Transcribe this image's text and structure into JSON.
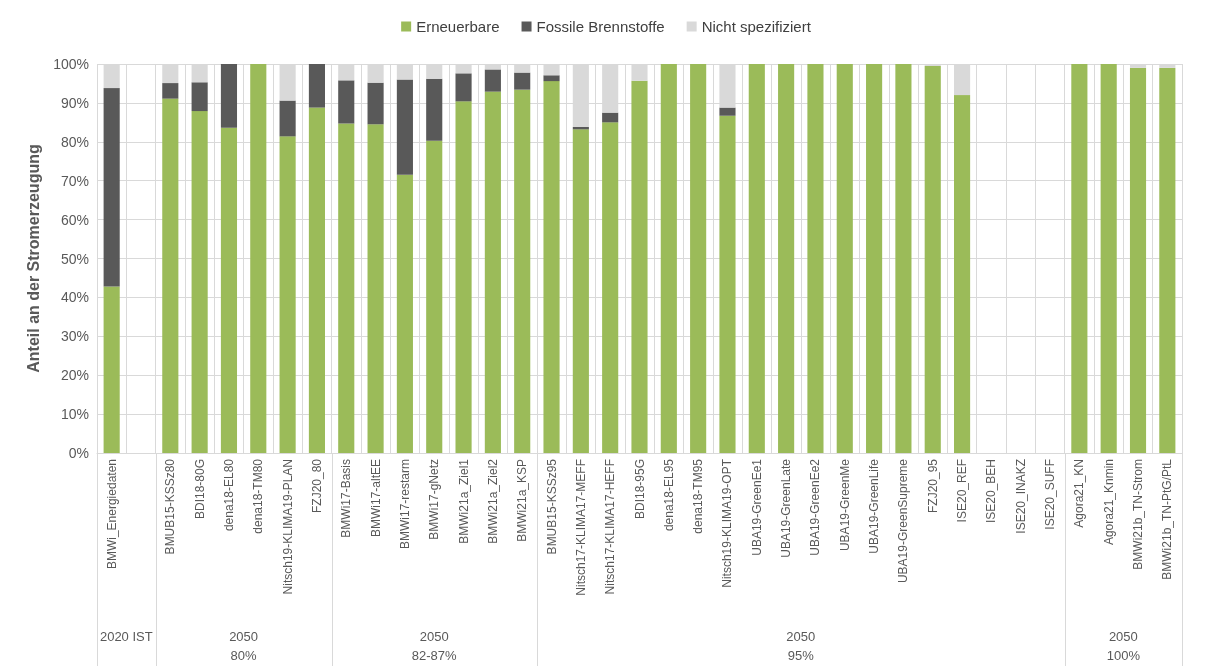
{
  "chart_data": {
    "type": "bar",
    "stacked": true,
    "ylabel": "Anteil an der Stromerzeugung",
    "categories": [
      "BMWi_Energiedaten",
      null,
      "BMUB15-KSSz80",
      "BDI18-80G",
      "dena18-EL80",
      "dena18-TM80",
      "Nitsch19-KLIMA19-PLAN",
      "FZJ20_80",
      "BMWi17-Basis",
      "BMWi17-altEE",
      "BMWi17-restarm",
      "BMWi17-gNetz",
      "BMWi21a_Ziel1",
      "BMWi21a_Ziel2",
      "BMWi21a_KSP",
      "BMUB15-KSSz95",
      "Nitsch17-KLIMA17-MEFF",
      "Nitsch17-KLIMA17-HEFF",
      "BDI18-95G",
      "dena18-EL95",
      "dena18-TM95",
      "Nitsch19-KLIMA19-OPT",
      "UBA19-GreenEe1",
      "UBA19-GreenLate",
      "UBA19-GreenEe2",
      "UBA19-GreenMe",
      "UBA19-GreenLife",
      "UBA19-GreenSupreme",
      "FZJ20_95",
      "ISE20_REF",
      "ISE20_BEH",
      "ISE20_INAKZ",
      "ISE20_SUFF",
      "Agora21_KN",
      "Agora21_Knmin",
      "BMWi21b_TN-Strom",
      "BMWi21b_TN-PtG/PtL"
    ],
    "series": [
      {
        "name": "Erneuerbare",
        "color": "#9bbb59",
        "values": [
          42.8,
          null,
          91.1,
          87.9,
          83.6,
          100,
          81.4,
          88.8,
          84.7,
          84.5,
          71.5,
          80.3,
          90.4,
          92.9,
          93.4,
          95.6,
          83.2,
          85.0,
          95.7,
          100,
          100,
          86.7,
          100,
          100,
          100,
          100,
          100,
          100,
          99.5,
          92.0,
          null,
          null,
          null,
          100,
          100,
          99.0,
          99.0
        ]
      },
      {
        "name": "Fossile Brennstoffe",
        "color": "#595959",
        "values": [
          51.0,
          null,
          4.0,
          7.4,
          16.4,
          0,
          9.2,
          11.2,
          11.1,
          10.7,
          24.5,
          15.9,
          7.2,
          5.7,
          4.4,
          1.5,
          0.6,
          2.5,
          0,
          0,
          0,
          2.1,
          0,
          0,
          0,
          0,
          0,
          0,
          0,
          0,
          null,
          null,
          null,
          0,
          0,
          0,
          0
        ]
      },
      {
        "name": "Nicht spezifiziert",
        "color": "#d9d9d9",
        "values": [
          6.2,
          null,
          4.9,
          4.7,
          0,
          0,
          9.4,
          0,
          4.2,
          4.8,
          4.0,
          3.8,
          2.4,
          1.4,
          2.2,
          2.9,
          16.2,
          12.5,
          4.3,
          0,
          0,
          11.2,
          0,
          0,
          0,
          0,
          0,
          0,
          0.5,
          8.0,
          null,
          null,
          null,
          0,
          0,
          1.0,
          1.0
        ]
      }
    ],
    "ylim": [
      0,
      100
    ],
    "yticks": [
      {
        "value": 0,
        "label": "0%"
      },
      {
        "value": 10,
        "label": "10%"
      },
      {
        "value": 20,
        "label": "20%"
      },
      {
        "value": 30,
        "label": "30%"
      },
      {
        "value": 40,
        "label": "40%"
      },
      {
        "value": 50,
        "label": "50%"
      },
      {
        "value": 60,
        "label": "60%"
      },
      {
        "value": 70,
        "label": "70%"
      },
      {
        "value": 80,
        "label": "80%"
      },
      {
        "value": 90,
        "label": "90%"
      },
      {
        "value": 100,
        "label": "100%"
      }
    ],
    "annotations": [
      "2020 IST",
      "2050 80%",
      "2050 82-87%",
      "2050 95%",
      "2050 100%"
    ],
    "grid": true,
    "legend": "top"
  }
}
